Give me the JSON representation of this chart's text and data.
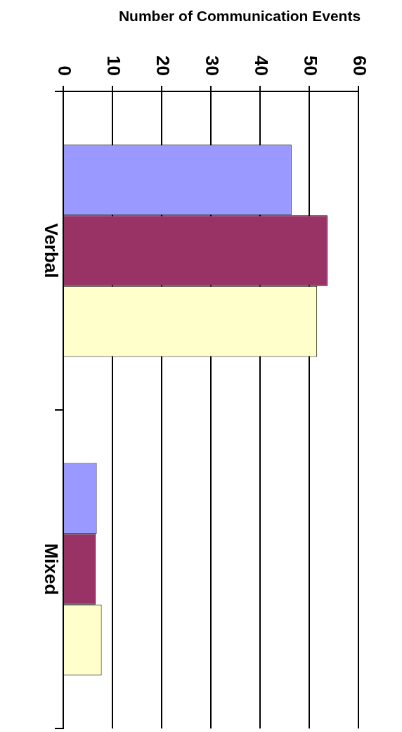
{
  "chart_data": {
    "type": "bar",
    "orientation": "horizontal",
    "xlabel": "Number of Communication Events",
    "categories": [
      "Verbal",
      "Mixed"
    ],
    "series": [
      {
        "color": "#9999ff",
        "values": [
          46.4,
          6.8
        ]
      },
      {
        "color": "#993366",
        "values": [
          53.7,
          6.6
        ]
      },
      {
        "color": "#ffffcc",
        "values": [
          51.6,
          7.8
        ]
      }
    ],
    "xlim": [
      0,
      60
    ],
    "xticks": [
      0,
      10,
      20,
      30,
      40,
      50,
      60
    ],
    "grid": "x",
    "legend": false
  }
}
